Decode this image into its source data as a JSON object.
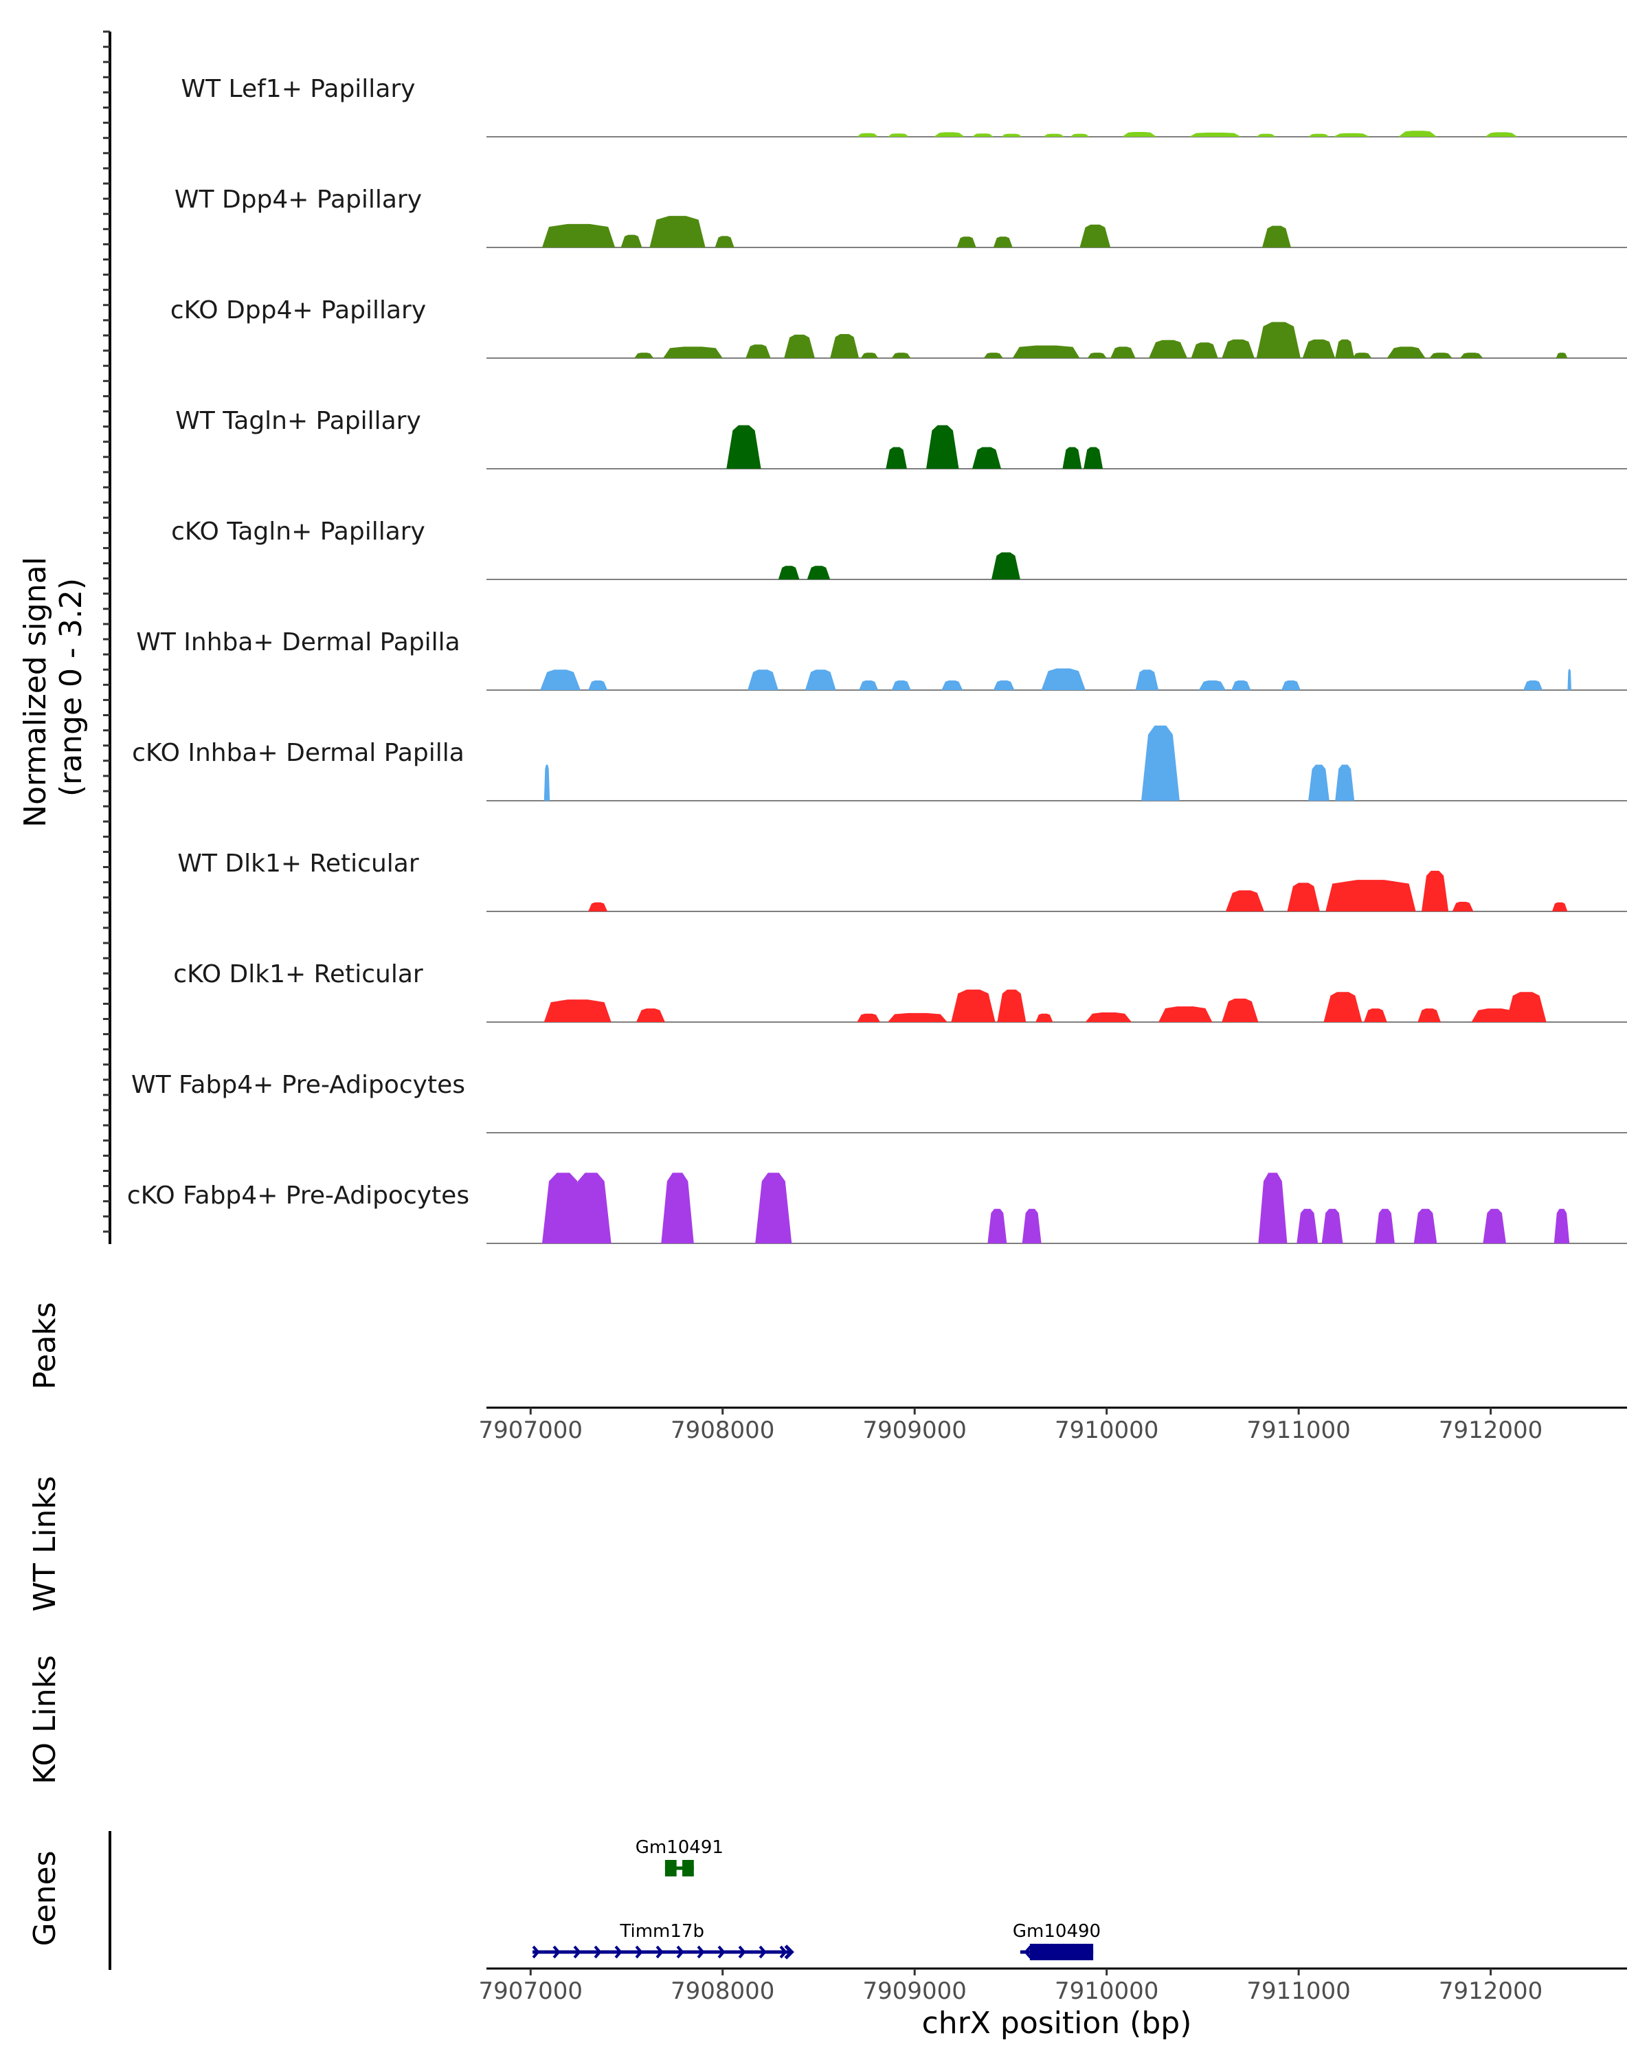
{
  "chart_data": {
    "type": "area",
    "chromosome": "chrX",
    "x_range": [
      7906770,
      7912710
    ],
    "y_range": [
      0,
      3.2
    ],
    "coverage_axis_title": [
      "Normalized signal",
      "(range 0 - 3.2)"
    ],
    "xlabel": "chrX position (bp)",
    "x_ticks": [
      {
        "value": 7907000,
        "label": "7907000"
      },
      {
        "value": 7908000,
        "label": "7908000"
      },
      {
        "value": 7909000,
        "label": "7909000"
      },
      {
        "value": 7910000,
        "label": "7910000"
      },
      {
        "value": 7911000,
        "label": "7911000"
      },
      {
        "value": 7912000,
        "label": "7912000"
      }
    ],
    "section_titles": {
      "peaks": "Peaks",
      "wt_links": "WT Links",
      "ko_links": "KO Links",
      "genes": "Genes"
    },
    "tracks": [
      {
        "name": "WT Lef1+ Papillary",
        "color": "#7fd11b",
        "peaks": [
          [
            7908700,
            7908810,
            0.12
          ],
          [
            7908860,
            7908970,
            0.11
          ],
          [
            7909100,
            7909260,
            0.15
          ],
          [
            7909300,
            7909410,
            0.11
          ],
          [
            7909450,
            7909560,
            0.1
          ],
          [
            7909670,
            7909780,
            0.1
          ],
          [
            7909810,
            7909910,
            0.1
          ],
          [
            7910080,
            7910260,
            0.16
          ],
          [
            7910430,
            7910700,
            0.14
          ],
          [
            7910780,
            7910880,
            0.1
          ],
          [
            7911050,
            7911160,
            0.1
          ],
          [
            7911180,
            7911370,
            0.12
          ],
          [
            7911520,
            7911720,
            0.2
          ],
          [
            7911970,
            7912140,
            0.15
          ]
        ]
      },
      {
        "name": "WT Dpp4+ Papillary",
        "color": "#4f8a10",
        "peaks": [
          [
            7907060,
            7907440,
            0.78
          ],
          [
            7907470,
            7907580,
            0.42
          ],
          [
            7907620,
            7907910,
            1.05
          ],
          [
            7907960,
            7908060,
            0.38
          ],
          [
            7909220,
            7909320,
            0.36
          ],
          [
            7909410,
            7909510,
            0.36
          ],
          [
            7909860,
            7910020,
            0.76
          ],
          [
            7910810,
            7910960,
            0.72
          ]
        ]
      },
      {
        "name": "cKO Dpp4+ Papillary",
        "color": "#4f8a10",
        "peaks": [
          [
            7907540,
            7907640,
            0.18
          ],
          [
            7907690,
            7908000,
            0.38
          ],
          [
            7908120,
            7908250,
            0.45
          ],
          [
            7908320,
            7908480,
            0.78
          ],
          [
            7908560,
            7908710,
            0.8
          ],
          [
            7908720,
            7908810,
            0.18
          ],
          [
            7908880,
            7908980,
            0.18
          ],
          [
            7909360,
            7909460,
            0.18
          ],
          [
            7909510,
            7909860,
            0.42
          ],
          [
            7909900,
            7910000,
            0.18
          ],
          [
            7910020,
            7910150,
            0.38
          ],
          [
            7910220,
            7910420,
            0.6
          ],
          [
            7910440,
            7910580,
            0.52
          ],
          [
            7910600,
            7910770,
            0.62
          ],
          [
            7910780,
            7911010,
            1.2
          ],
          [
            7911020,
            7911190,
            0.62
          ],
          [
            7911190,
            7911290,
            0.62
          ],
          [
            7911280,
            7911380,
            0.18
          ],
          [
            7911460,
            7911660,
            0.38
          ],
          [
            7911680,
            7911800,
            0.18
          ],
          [
            7911840,
            7911960,
            0.18
          ],
          [
            7912340,
            7912400,
            0.18
          ]
        ]
      },
      {
        "name": "WT Tagln+ Papillary",
        "color": "#006400",
        "peaks": [
          [
            7908020,
            7908200,
            1.45
          ],
          [
            7908850,
            7908960,
            0.72
          ],
          [
            7909060,
            7909230,
            1.45
          ],
          [
            7909300,
            7909450,
            0.72
          ],
          [
            7909770,
            7909870,
            0.72
          ],
          [
            7909880,
            7909980,
            0.72
          ]
        ]
      },
      {
        "name": "cKO Tagln+ Papillary",
        "color": "#006400",
        "peaks": [
          [
            7908290,
            7908400,
            0.45
          ],
          [
            7908440,
            7908560,
            0.45
          ],
          [
            7909400,
            7909550,
            0.9
          ]
        ]
      },
      {
        "name": "WT Inhba+ Dermal Papilla",
        "color": "#5aaaee",
        "peaks": [
          [
            7907050,
            7907260,
            0.68
          ],
          [
            7907300,
            7907400,
            0.32
          ],
          [
            7908130,
            7908290,
            0.68
          ],
          [
            7908430,
            7908590,
            0.68
          ],
          [
            7908710,
            7908810,
            0.32
          ],
          [
            7908880,
            7908980,
            0.32
          ],
          [
            7909140,
            7909250,
            0.32
          ],
          [
            7909410,
            7909520,
            0.32
          ],
          [
            7909660,
            7909890,
            0.72
          ],
          [
            7910150,
            7910270,
            0.68
          ],
          [
            7910480,
            7910620,
            0.32
          ],
          [
            7910650,
            7910750,
            0.32
          ],
          [
            7910910,
            7911010,
            0.32
          ],
          [
            7912170,
            7912270,
            0.32
          ],
          [
            7912400,
            7912420,
            0.7
          ]
        ]
      },
      {
        "name": "cKO Inhba+ Dermal Papilla",
        "color": "#5aaaee",
        "peaks": [
          [
            7907070,
            7907100,
            1.2
          ],
          [
            7910180,
            7910380,
            2.5
          ],
          [
            7911050,
            7911160,
            1.2
          ],
          [
            7911190,
            7911290,
            1.2
          ]
        ]
      },
      {
        "name": "WT Dlk1+ Reticular",
        "color": "#ff2626",
        "peaks": [
          [
            7907300,
            7907400,
            0.3
          ],
          [
            7910620,
            7910820,
            0.7
          ],
          [
            7910940,
            7911110,
            0.95
          ],
          [
            7911140,
            7911610,
            1.05
          ],
          [
            7911640,
            7911780,
            1.35
          ],
          [
            7911800,
            7911910,
            0.32
          ],
          [
            7912320,
            7912400,
            0.3
          ]
        ]
      },
      {
        "name": "cKO Dlk1+ Reticular",
        "color": "#ff2626",
        "peaks": [
          [
            7907070,
            7907420,
            0.75
          ],
          [
            7907550,
            7907700,
            0.45
          ],
          [
            7908700,
            7908820,
            0.28
          ],
          [
            7908860,
            7909170,
            0.3
          ],
          [
            7909190,
            7909420,
            1.08
          ],
          [
            7909430,
            7909580,
            1.08
          ],
          [
            7909630,
            7909720,
            0.28
          ],
          [
            7909890,
            7910130,
            0.32
          ],
          [
            7910270,
            7910550,
            0.52
          ],
          [
            7910600,
            7910790,
            0.78
          ],
          [
            7911130,
            7911330,
            1.0
          ],
          [
            7911340,
            7911460,
            0.45
          ],
          [
            7911620,
            7911740,
            0.45
          ],
          [
            7911900,
            7912140,
            0.45
          ],
          [
            7912080,
            7912290,
            1.0
          ]
        ]
      },
      {
        "name": "WT Fabp4+ Pre-Adipocytes",
        "color": "#a63ce8",
        "peaks": []
      },
      {
        "name": "cKO Fabp4+ Pre-Adipocytes",
        "color": "#a63ce8",
        "peaks": [
          [
            7907060,
            7907280,
            2.35
          ],
          [
            7907210,
            7907420,
            2.35
          ],
          [
            7907680,
            7907850,
            2.35
          ],
          [
            7908170,
            7908360,
            2.35
          ],
          [
            7909380,
            7909480,
            1.15
          ],
          [
            7909560,
            7909660,
            1.15
          ],
          [
            7910790,
            7910940,
            2.35
          ],
          [
            7910990,
            7911100,
            1.15
          ],
          [
            7911120,
            7911230,
            1.15
          ],
          [
            7911400,
            7911500,
            1.15
          ],
          [
            7911600,
            7911720,
            1.15
          ],
          [
            7911960,
            7912080,
            1.15
          ],
          [
            7912330,
            7912410,
            1.15
          ]
        ]
      }
    ],
    "genes": [
      {
        "name": "Gm10491",
        "color": "#006400",
        "start": 7907700,
        "end": 7907850,
        "row": 0,
        "exons": [
          [
            7907700,
            7907760
          ],
          [
            7907790,
            7907850
          ]
        ],
        "strand": "none"
      },
      {
        "name": "Timm17b",
        "color": "#00008b",
        "start": 7907010,
        "end": 7908360,
        "row": 1,
        "exons": [],
        "strand": "+"
      },
      {
        "name": "Gm10490",
        "color": "#00008b",
        "start": 7909550,
        "end": 7909930,
        "row": 1,
        "exons": [
          [
            7909600,
            7909930
          ]
        ],
        "strand": "-"
      }
    ]
  }
}
